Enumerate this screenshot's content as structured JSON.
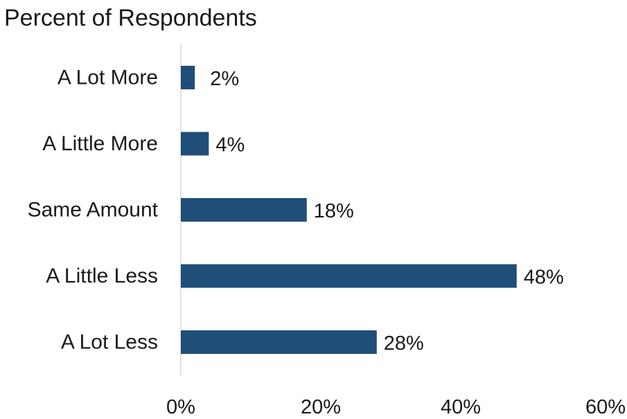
{
  "chart_data": {
    "type": "bar",
    "orientation": "horizontal",
    "title": "Percent of Respondents",
    "categories": [
      "A Lot More",
      "A Little More",
      "Same Amount",
      "A Little Less",
      "A Lot Less"
    ],
    "values": [
      2,
      4,
      18,
      48,
      28
    ],
    "value_labels": [
      "2%",
      "4%",
      "18%",
      "48%",
      "28%"
    ],
    "xlim": [
      0,
      60
    ],
    "x_ticks": [
      0,
      20,
      40,
      60
    ],
    "x_tick_labels": [
      "0%",
      "20%",
      "40%",
      "60%"
    ],
    "grid": false,
    "bar_color": "#1f4e79",
    "axis_color": "#d9d9d9"
  }
}
